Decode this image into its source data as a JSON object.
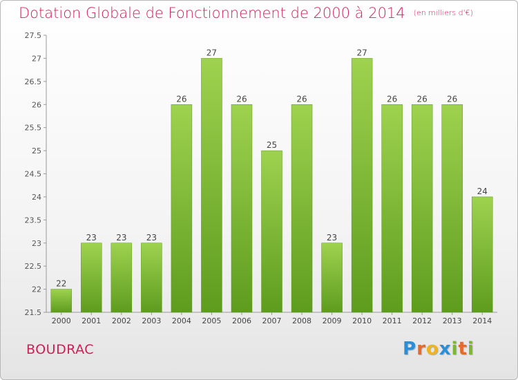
{
  "title": "Dotation Globale de Fonctionnement de 2000 à 2014",
  "unit": "(en milliers d'€)",
  "commune": "BOUDRAC",
  "logo": {
    "letters": [
      "P",
      "r",
      "o",
      "x",
      "i",
      "t",
      "i"
    ],
    "colors": [
      "#2a8fd8",
      "#e8692a",
      "#f2b41d",
      "#2a8fd8",
      "#7cb82f",
      "#e8692a",
      "#7cb82f"
    ]
  },
  "chart_data": {
    "type": "bar",
    "title": "Dotation Globale de Fonctionnement de 2000 à 2014",
    "subtitle": "(en milliers d'€)",
    "xlabel": "",
    "ylabel": "",
    "categories": [
      "2000",
      "2001",
      "2002",
      "2003",
      "2004",
      "2005",
      "2006",
      "2007",
      "2008",
      "2009",
      "2010",
      "2011",
      "2012",
      "2013",
      "2014"
    ],
    "values": [
      22,
      23,
      23,
      23,
      26,
      27,
      26,
      25,
      26,
      23,
      27,
      26,
      26,
      26,
      24
    ],
    "ylim": [
      21.5,
      27.5
    ],
    "yticks": [
      "21.5",
      "22",
      "22.5",
      "23",
      "23.5",
      "24",
      "24.5",
      "25",
      "25.5",
      "26",
      "26.5",
      "27",
      "27.5"
    ],
    "grid": false,
    "bar_color": "#7cc23a"
  }
}
